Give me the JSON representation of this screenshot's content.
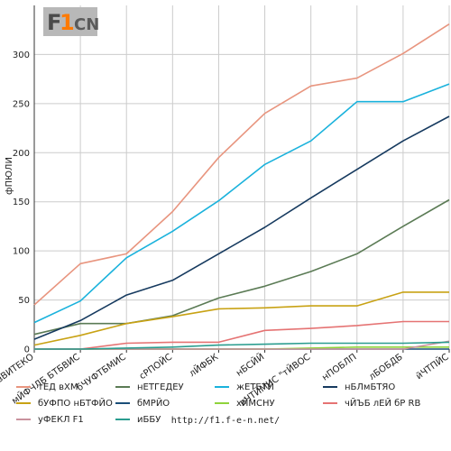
{
  "chart_data": {
    "type": "line",
    "title": "",
    "xlabel": "",
    "ylabel": "фПЮЛИ",
    "ylim": [
      0,
      350
    ],
    "yticks": [
      0,
      50,
      100,
      150,
      200,
      250,
      300
    ],
    "grid": true,
    "legend_position": "bottom",
    "categories": [
      "вВИТЕКО",
      "мЙФЧЛБ БТБВИС",
      "бЧУФТБМИС",
      "сРПОЙС",
      "лЙФБК",
      "нБСЙЙ",
      "еЧТЙМИС \"тЙВОС",
      "нПОБЛП",
      "лБОБДБ",
      "йЧТПЙС"
    ],
    "series": [
      {
        "name": "тЕД вХМ",
        "color": "#e8957f",
        "values": [
          45,
          87,
          97,
          140,
          195,
          240,
          268,
          276,
          301,
          331
        ]
      },
      {
        "name": "нЕТГЕДЕУ",
        "color": "#5b7b55",
        "values": [
          15,
          26,
          26,
          34,
          52,
          64,
          79,
          97,
          125,
          152
        ]
      },
      {
        "name": "жЕТБТЙ",
        "color": "#1ab2dc",
        "values": [
          27,
          49,
          93,
          120,
          151,
          188,
          212,
          252,
          252,
          270
        ]
      },
      {
        "name": "нБЛмБТЯО",
        "color": "#163a5f",
        "values": [
          10,
          29,
          55,
          70,
          97,
          124,
          154,
          183,
          212,
          237
        ]
      },
      {
        "name": "бУФПО нБТФЙО",
        "color": "#c8a214",
        "values": [
          4,
          14,
          26,
          33,
          41,
          42,
          44,
          44,
          58,
          58
        ]
      },
      {
        "name": "бМРЙО",
        "color": "#1a4e78",
        "values": [
          0,
          0,
          0,
          0,
          0,
          0,
          0,
          0,
          0,
          0
        ]
      },
      {
        "name": "хЙМСНУ",
        "color": "#8fd33b",
        "values": [
          0,
          0,
          0,
          0,
          0,
          0,
          1,
          2,
          2,
          2
        ]
      },
      {
        "name": "чЙЪБ лЕЙ бР RB",
        "color": "#e57373",
        "values": [
          0,
          0,
          6,
          7,
          7,
          19,
          21,
          24,
          28,
          28
        ]
      },
      {
        "name": "уФЕКЛ F1",
        "color": "#c9929e",
        "values": [
          0,
          0,
          0,
          0,
          0,
          0,
          0,
          0,
          0,
          8
        ]
      },
      {
        "name": "иББУ",
        "color": "#2a9d8f",
        "values": [
          0,
          0,
          1,
          2,
          4,
          5,
          6,
          6,
          6,
          7
        ]
      }
    ]
  },
  "logo": {
    "text": "F1CN"
  },
  "footer": {
    "url": "http://f1.f-e-n.net/"
  }
}
